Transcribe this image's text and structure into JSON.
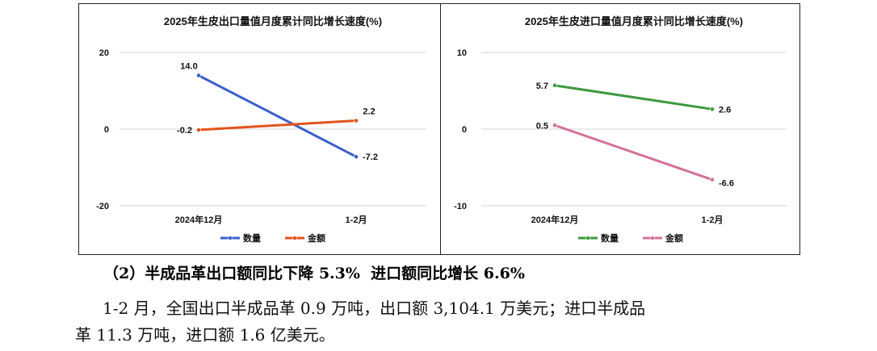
{
  "chart_data": [
    {
      "type": "line",
      "title": "2025年生皮出口量值月度累计同比增长速度(%)",
      "categories": [
        "2024年12月",
        "1-2月"
      ],
      "ylim": [
        -20,
        20
      ],
      "yticks": [
        20,
        0,
        -20
      ],
      "ytick_labels": [
        "20",
        "0",
        "-20"
      ],
      "grid": true,
      "legend": "bottom",
      "series": [
        {
          "name": "数量",
          "values": [
            14.0,
            -7.2
          ],
          "labels": [
            "14.0",
            "-7.2"
          ],
          "color": "#3a5fcd",
          "label_pos": [
            "above-left",
            "right"
          ]
        },
        {
          "name": "金额",
          "values": [
            -0.2,
            2.2
          ],
          "labels": [
            "-0.2",
            "2.2"
          ],
          "color": "#e2531b",
          "label_pos": [
            "left",
            "above-right"
          ]
        }
      ]
    },
    {
      "type": "line",
      "title": "2025年生皮进口量值月度累计同比增长速度(%)",
      "categories": [
        "2024年12月",
        "1-2月"
      ],
      "ylim": [
        -10,
        10
      ],
      "yticks": [
        10,
        0,
        -10
      ],
      "ytick_labels": [
        "10",
        "0",
        "-10"
      ],
      "grid": true,
      "legend": "bottom",
      "series": [
        {
          "name": "数量",
          "values": [
            5.7,
            2.6
          ],
          "labels": [
            "5.7",
            "2.6"
          ],
          "color": "#3e9a3e",
          "label_pos": [
            "left",
            "right"
          ]
        },
        {
          "name": "金额",
          "values": [
            0.5,
            -6.6
          ],
          "labels": [
            "0.5",
            "-6.6"
          ],
          "color": "#d4709a",
          "label_pos": [
            "left",
            "below-right"
          ]
        }
      ]
    }
  ],
  "text": {
    "heading": "（2）半成品革出口额同比下降 5.3%  进口额同比增长 6.6%",
    "para_line1": "1-2 月，全国出口半成品革 0.9 万吨，出口额 3,104.1 万美元；进口半成品",
    "para_line2": "革 11.3 万吨，进口额 1.6 亿美元。"
  }
}
